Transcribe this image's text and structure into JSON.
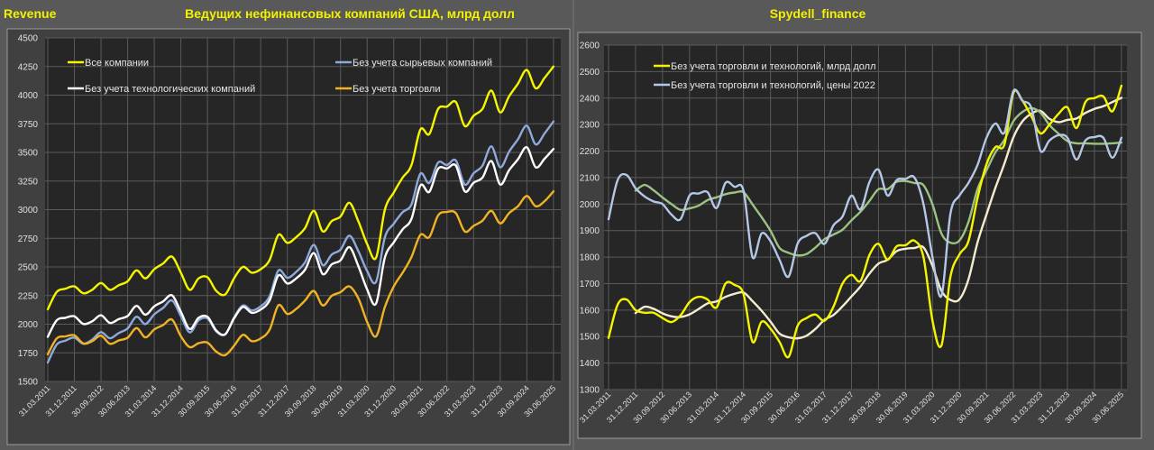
{
  "header": {
    "left_label": "Revenue",
    "left_title": "Ведущих нефинансовых компаний США, млрд долл",
    "right_title": "Spydell_finance"
  },
  "chart_data": [
    {
      "type": "line",
      "title": "Ведущих нефинансовых компаний США, млрд долл",
      "ylabel": "млрд долл",
      "ylim": [
        1500,
        4500
      ],
      "yticks": [
        1500,
        1750,
        2000,
        2250,
        2500,
        2750,
        3000,
        3250,
        3500,
        3750,
        4000,
        4250,
        4500
      ],
      "frequency": "quarterly, 31.03.2011 – 30.06.2025",
      "xtick_labels": [
        "31.03.2011",
        "31.12.2011",
        "30.09.2012",
        "30.06.2013",
        "31.03.2014",
        "31.12.2014",
        "30.09.2015",
        "30.06.2016",
        "31.03.2017",
        "31.12.2017",
        "30.09.2018",
        "30.06.2019",
        "31.03.2020",
        "31.12.2020",
        "30.09.2021",
        "30.06.2022",
        "31.03.2023",
        "31.12.2023",
        "30.09.2024",
        "30.06.2025"
      ],
      "grid": true,
      "legend_position": "top",
      "series": [
        {
          "name": "Все компании",
          "color": "#f5f500",
          "values": [
            2130,
            2280,
            2310,
            2330,
            2270,
            2300,
            2360,
            2300,
            2340,
            2375,
            2470,
            2400,
            2480,
            2530,
            2590,
            2450,
            2300,
            2400,
            2410,
            2290,
            2260,
            2400,
            2500,
            2450,
            2480,
            2560,
            2780,
            2710,
            2760,
            2840,
            2990,
            2810,
            2900,
            2940,
            3060,
            2900,
            2700,
            2580,
            3000,
            3150,
            3280,
            3390,
            3700,
            3660,
            3880,
            3900,
            3940,
            3730,
            3820,
            3880,
            4040,
            3850,
            3990,
            4100,
            4220,
            4060,
            4150,
            4250
          ]
        },
        {
          "name": "Без учета сырьевых компаний",
          "color": "#8ea9db",
          "values": [
            1665,
            1821,
            1857,
            1883,
            1829,
            1865,
            1931,
            1877,
            1923,
            1964,
            2065,
            2001,
            2086,
            2142,
            2207,
            2072,
            1928,
            2034,
            2050,
            1936,
            1912,
            2058,
            2164,
            2120,
            2156,
            2243,
            2469,
            2405,
            2457,
            2540,
            2692,
            2516,
            2608,
            2651,
            2773,
            2639,
            2464,
            2370,
            2759,
            2878,
            2978,
            3046,
            3314,
            3233,
            3412,
            3390,
            3430,
            3220,
            3317,
            3385,
            3553,
            3370,
            3507,
            3615,
            3733,
            3570,
            3665,
            3770
          ]
        },
        {
          "name": "Без учета технологических компаний",
          "color": "#ffffff",
          "values": [
            1890,
            2033,
            2056,
            2069,
            2002,
            2025,
            2078,
            2011,
            2044,
            2072,
            2160,
            2083,
            2156,
            2199,
            2252,
            2109,
            1958,
            2056,
            2065,
            1944,
            1912,
            2051,
            2150,
            2099,
            2128,
            2207,
            2426,
            2355,
            2400,
            2476,
            2621,
            2437,
            2522,
            2558,
            2673,
            2509,
            2304,
            2180,
            2582,
            2715,
            2828,
            2920,
            3212,
            3155,
            3358,
            3360,
            3385,
            3160,
            3235,
            3280,
            3425,
            3220,
            3345,
            3440,
            3545,
            3370,
            3445,
            3530
          ]
        },
        {
          "name": "Без учета торговли",
          "color": "#f0b323",
          "values": [
            1736,
            1875,
            1894,
            1903,
            1832,
            1851,
            1900,
            1829,
            1858,
            1882,
            1966,
            1885,
            1954,
            1993,
            2040,
            1895,
            1800,
            1834,
            1839,
            1760,
            1730,
            1812,
            1907,
            1852,
            1876,
            1951,
            2165,
            2090,
            2133,
            2207,
            2290,
            2164,
            2247,
            2280,
            2330,
            2227,
            2020,
            1894,
            2150,
            2330,
            2450,
            2587,
            2780,
            2760,
            2950,
            2980,
            2970,
            2810,
            2858,
            2904,
            2990,
            2880,
            2970,
            3030,
            3120,
            3030,
            3074,
            3160
          ]
        }
      ]
    },
    {
      "type": "line",
      "title": "Spydell_finance",
      "ylim": [
        1300,
        2600
      ],
      "yticks": [
        1300,
        1400,
        1500,
        1600,
        1700,
        1800,
        1900,
        2000,
        2100,
        2200,
        2300,
        2400,
        2500,
        2600
      ],
      "frequency": "quarterly, 31.03.2011 – 30.06.2025",
      "xtick_labels": [
        "31.03.2011",
        "31.12.2011",
        "30.09.2012",
        "30.06.2013",
        "31.03.2014",
        "31.12.2014",
        "30.09.2015",
        "30.06.2016",
        "31.03.2017",
        "31.12.2017",
        "30.09.2018",
        "30.06.2019",
        "31.03.2020",
        "31.12.2020",
        "30.09.2021",
        "30.06.2022",
        "31.03.2023",
        "31.12.2023",
        "30.09.2024",
        "30.06.2025"
      ],
      "grid": true,
      "legend_position": "top-left",
      "moving_average_window": 4,
      "series": [
        {
          "name": "Без учета торговли и технологий, млрд долл",
          "color": "#f5f500",
          "ma_color": "#f3ecd0",
          "values": [
            1495,
            1620,
            1640,
            1600,
            1590,
            1590,
            1570,
            1555,
            1580,
            1630,
            1650,
            1640,
            1610,
            1700,
            1695,
            1660,
            1480,
            1556,
            1530,
            1480,
            1423,
            1540,
            1570,
            1583,
            1560,
            1613,
            1700,
            1733,
            1710,
            1808,
            1850,
            1790,
            1840,
            1845,
            1862,
            1800,
            1560,
            1467,
            1726,
            1810,
            1860,
            2022,
            2150,
            2215,
            2225,
            2420,
            2390,
            2330,
            2267,
            2300,
            2340,
            2365,
            2287,
            2385,
            2400,
            2406,
            2350,
            2447
          ]
        },
        {
          "name": "Без учета торговли и технологий, цены 2022",
          "color": "#b4c7e7",
          "ma_color": "#9dc383",
          "values": [
            1943,
            2090,
            2110,
            2060,
            2029,
            2010,
            2000,
            1960,
            1943,
            2032,
            2040,
            2045,
            1985,
            2080,
            2065,
            2050,
            1800,
            1889,
            1860,
            1790,
            1726,
            1850,
            1880,
            1890,
            1850,
            1920,
            1953,
            2032,
            1980,
            2083,
            2130,
            2032,
            2090,
            2095,
            2100,
            2000,
            1800,
            1654,
            1964,
            2032,
            2080,
            2147,
            2250,
            2304,
            2270,
            2427,
            2390,
            2362,
            2202,
            2240,
            2260,
            2250,
            2168,
            2240,
            2253,
            2250,
            2175,
            2250
          ]
        }
      ]
    }
  ]
}
